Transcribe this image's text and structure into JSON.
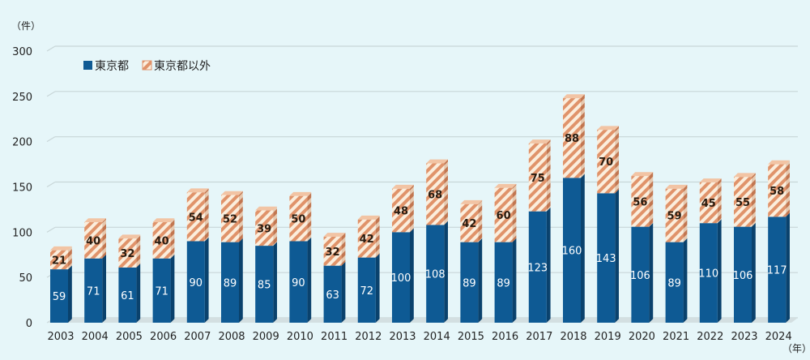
{
  "chart_data": {
    "type": "bar",
    "stacked": true,
    "title": "",
    "ylabel": "（件）",
    "xlabel": "（年）",
    "ylim": [
      0,
      300
    ],
    "yticks": [
      0,
      50,
      100,
      150,
      200,
      250,
      300
    ],
    "grid": true,
    "legend_position": "top-left",
    "categories": [
      "2003",
      "2004",
      "2005",
      "2006",
      "2007",
      "2008",
      "2009",
      "2010",
      "2011",
      "2012",
      "2013",
      "2014",
      "2015",
      "2016",
      "2017",
      "2018",
      "2019",
      "2020",
      "2021",
      "2022",
      "2023",
      "2024"
    ],
    "series": [
      {
        "name": "東京都",
        "color": "#0e5a94",
        "pattern": "solid",
        "values": [
          59,
          71,
          61,
          71,
          90,
          89,
          85,
          90,
          63,
          72,
          100,
          108,
          89,
          89,
          123,
          160,
          143,
          106,
          89,
          110,
          106,
          117
        ]
      },
      {
        "name": "東京都以外",
        "color": "#e0936a",
        "pattern": "hatched",
        "values": [
          21,
          40,
          32,
          40,
          54,
          52,
          39,
          50,
          32,
          42,
          48,
          68,
          42,
          60,
          75,
          88,
          70,
          56,
          59,
          45,
          55,
          58
        ]
      }
    ]
  }
}
